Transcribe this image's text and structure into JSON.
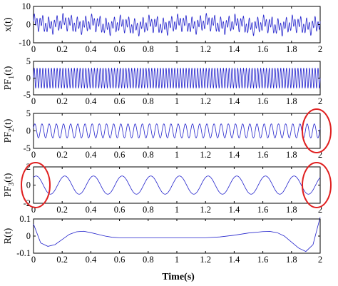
{
  "figure": {
    "xlabel": "Time(s)",
    "colors": {
      "signal": "#2222cc",
      "highlight": "#e02020",
      "axes": "#000000"
    }
  },
  "chart_data": [
    {
      "type": "line",
      "ylabel_base": "x(t)",
      "ylabel_sub": "",
      "xlim": [
        0,
        2
      ],
      "ylim": [
        -10,
        10
      ],
      "xticks": [
        "0",
        "0.2",
        "0.4",
        "0.6",
        "0.8",
        "1",
        "1.2",
        "1.4",
        "1.6",
        "1.8",
        "2"
      ],
      "yticks": [
        {
          "value": -10,
          "label": "-10"
        },
        {
          "value": 0,
          "label": "0"
        },
        {
          "value": 10,
          "label": "10"
        }
      ],
      "series": [
        {
          "components": [
            {
              "amplitude": 3.0,
              "frequency_hz": 50,
              "phase": 0
            },
            {
              "amplitude": 2.0,
              "frequency_hz": 20,
              "phase": 0.4
            },
            {
              "amplitude": 1.0,
              "frequency_hz": 5,
              "phase": 1.0
            },
            {
              "amplitude": 0.5,
              "frequency_hz": 1,
              "phase": 0.3
            }
          ]
        }
      ],
      "highlights": []
    },
    {
      "type": "line",
      "ylabel_base": "PF",
      "ylabel_sub": "1",
      "ylabel_tail": "(t)",
      "xlim": [
        0,
        2
      ],
      "ylim": [
        -5,
        5
      ],
      "xticks": [
        "0",
        "0.2",
        "0.4",
        "0.6",
        "0.8",
        "1",
        "1.2",
        "1.4",
        "1.6",
        "1.8",
        "2"
      ],
      "yticks": [
        {
          "value": -5,
          "label": "-5"
        },
        {
          "value": 0,
          "label": "0"
        },
        {
          "value": 5,
          "label": "5"
        }
      ],
      "series": [
        {
          "components": [
            {
              "amplitude": 3.0,
              "frequency_hz": 50,
              "phase": 0
            }
          ]
        }
      ],
      "highlights": []
    },
    {
      "type": "line",
      "ylabel_base": "PF",
      "ylabel_sub": "2",
      "ylabel_tail": "(t)",
      "xlim": [
        0,
        2
      ],
      "ylim": [
        -5,
        5
      ],
      "xticks": [
        "0",
        "0.2",
        "0.4",
        "0.6",
        "0.8",
        "1",
        "1.2",
        "1.4",
        "1.6",
        "1.8",
        "2"
      ],
      "yticks": [
        {
          "value": -5,
          "label": "-5"
        },
        {
          "value": 0,
          "label": "0"
        },
        {
          "value": 5,
          "label": "5"
        }
      ],
      "series": [
        {
          "components": [
            {
              "amplitude": 2.0,
              "frequency_hz": 20,
              "phase": 0.4
            }
          ]
        }
      ],
      "highlights": [
        "right"
      ]
    },
    {
      "type": "line",
      "ylabel_base": "PF",
      "ylabel_sub": "3",
      "ylabel_tail": "(t)",
      "xlim": [
        0,
        2
      ],
      "ylim": [
        -2,
        2
      ],
      "xticks": [
        "0",
        "0.2",
        "0.4",
        "0.6",
        "0.8",
        "1",
        "1.2",
        "1.4",
        "1.6",
        "1.8",
        "2"
      ],
      "yticks": [
        {
          "value": -2,
          "label": "-2"
        },
        {
          "value": 0,
          "label": "0"
        },
        {
          "value": 2,
          "label": "2"
        }
      ],
      "series": [
        {
          "components": [
            {
              "amplitude": 1.0,
              "frequency_hz": 5,
              "phase": 1.0
            }
          ]
        }
      ],
      "highlights": [
        "left",
        "right"
      ]
    },
    {
      "type": "line",
      "ylabel_base": "R(t)",
      "ylabel_sub": "",
      "xlim": [
        0,
        2
      ],
      "ylim": [
        -0.1,
        0.1
      ],
      "xticks": [
        "0",
        "0.2",
        "0.4",
        "0.6",
        "0.8",
        "1",
        "1.2",
        "1.4",
        "1.6",
        "1.8",
        "2"
      ],
      "yticks": [
        {
          "value": -0.1,
          "label": "-0.1"
        },
        {
          "value": 0,
          "label": "0"
        },
        {
          "value": 0.1,
          "label": "0.1"
        }
      ],
      "series": [
        {
          "points": [
            [
              0,
              0.07
            ],
            [
              0.05,
              -0.04
            ],
            [
              0.1,
              -0.06
            ],
            [
              0.15,
              -0.05
            ],
            [
              0.2,
              -0.02
            ],
            [
              0.25,
              0.01
            ],
            [
              0.3,
              0.025
            ],
            [
              0.35,
              0.028
            ],
            [
              0.4,
              0.02
            ],
            [
              0.45,
              0.01
            ],
            [
              0.5,
              0.0
            ],
            [
              0.55,
              -0.007
            ],
            [
              0.6,
              -0.01
            ],
            [
              0.7,
              -0.01
            ],
            [
              0.8,
              -0.01
            ],
            [
              0.9,
              -0.01
            ],
            [
              1.0,
              -0.01
            ],
            [
              1.1,
              -0.01
            ],
            [
              1.2,
              -0.01
            ],
            [
              1.3,
              -0.005
            ],
            [
              1.4,
              0.005
            ],
            [
              1.5,
              0.018
            ],
            [
              1.6,
              0.026
            ],
            [
              1.65,
              0.027
            ],
            [
              1.7,
              0.02
            ],
            [
              1.75,
              0.0
            ],
            [
              1.8,
              -0.035
            ],
            [
              1.85,
              -0.07
            ],
            [
              1.9,
              -0.09
            ],
            [
              1.95,
              -0.05
            ],
            [
              2.0,
              0.11
            ]
          ]
        }
      ],
      "highlights": []
    }
  ]
}
